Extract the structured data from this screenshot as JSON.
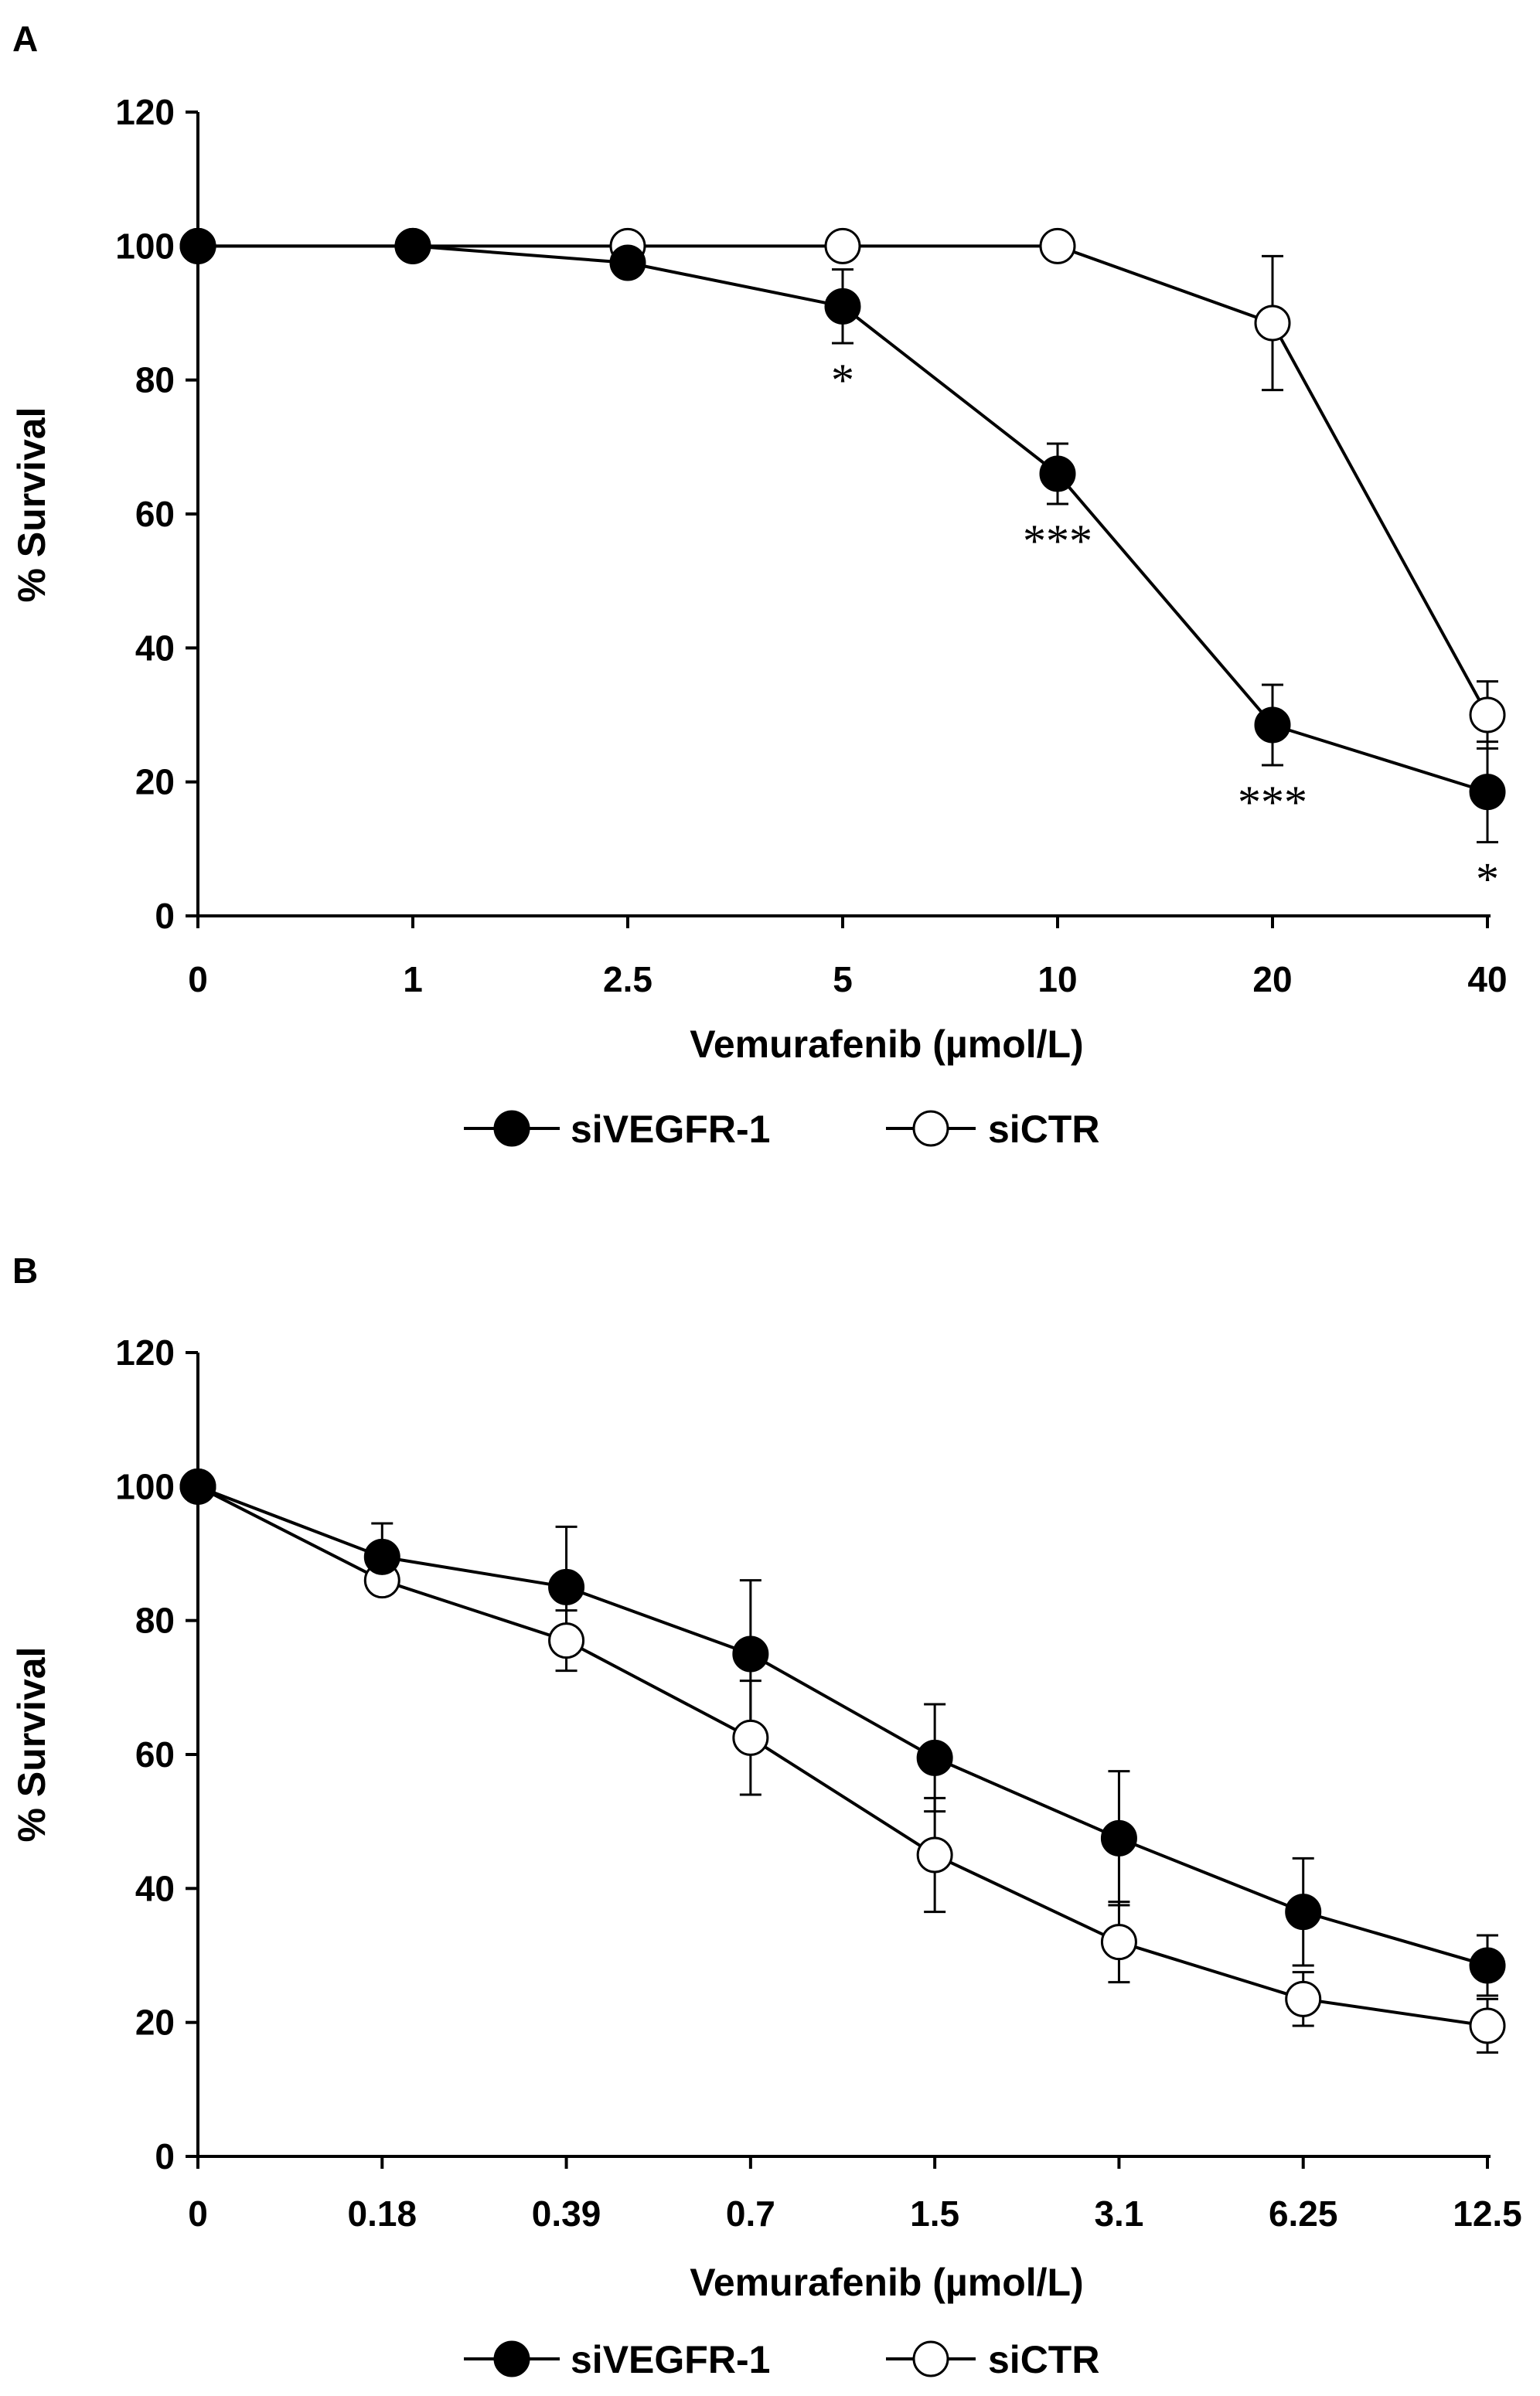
{
  "colors": {
    "axis": "#000000",
    "filled_marker": "#000000",
    "open_marker_fill": "#ffffff"
  },
  "chart_data": [
    {
      "panel": "A",
      "type": "line",
      "title": "",
      "xlabel": "Vemurafenib (µmol/L)",
      "ylabel": "% Survival",
      "categories": [
        "0",
        "1",
        "2.5",
        "5",
        "10",
        "20",
        "40"
      ],
      "ylim": [
        0,
        120
      ],
      "yticks": [
        0,
        20,
        40,
        60,
        80,
        100,
        120
      ],
      "grid": false,
      "legend_position": "bottom-center",
      "series": [
        {
          "name": "siVEGFR-1",
          "marker": "filled-circle",
          "values": [
            100,
            100,
            97.5,
            91,
            66,
            28.5,
            18.5
          ],
          "error": [
            null,
            null,
            null,
            5.5,
            4.5,
            6,
            7.5
          ],
          "annotations": [
            "",
            "",
            "",
            "*",
            "***",
            "***",
            "*"
          ]
        },
        {
          "name": "siCTR",
          "marker": "open-circle",
          "values": [
            100,
            100,
            100,
            100,
            100,
            88.5,
            30
          ],
          "error": [
            null,
            null,
            null,
            null,
            null,
            10,
            5
          ]
        }
      ]
    },
    {
      "panel": "B",
      "type": "line",
      "title": "",
      "xlabel": "Vemurafenib (µmol/L)",
      "ylabel": "% Survival",
      "categories": [
        "0",
        "0.18",
        "0.39",
        "0.7",
        "1.5",
        "3.1",
        "6.25",
        "12.5"
      ],
      "ylim": [
        0,
        120
      ],
      "yticks": [
        0,
        20,
        40,
        60,
        80,
        100,
        120
      ],
      "grid": false,
      "legend_position": "bottom-center",
      "series": [
        {
          "name": "siVEGFR-1",
          "marker": "filled-circle",
          "values": [
            100,
            89.5,
            85,
            75,
            59.5,
            47.5,
            36.5,
            28.5
          ],
          "error": [
            null,
            5,
            9,
            11,
            8,
            10,
            8,
            4.5
          ]
        },
        {
          "name": "siCTR",
          "marker": "open-circle",
          "values": [
            100,
            86,
            77,
            62.5,
            45,
            32,
            23.5,
            19.5
          ],
          "error": [
            null,
            null,
            4.5,
            8.5,
            8.5,
            6,
            4,
            4
          ]
        }
      ]
    }
  ]
}
